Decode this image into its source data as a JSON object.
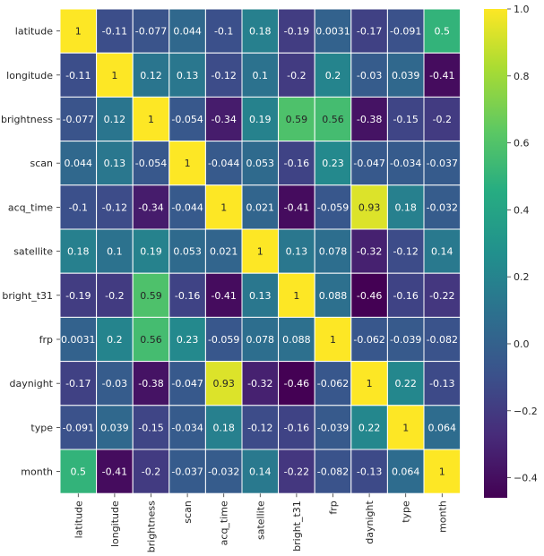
{
  "chart_data": {
    "type": "heatmap",
    "title": "",
    "xlabel": "",
    "ylabel": "",
    "rows": [
      "latitude",
      "longitude",
      "brightness",
      "scan",
      "acq_time",
      "satellite",
      "bright_t31",
      "frp",
      "daynight",
      "type",
      "month"
    ],
    "columns": [
      "latitude",
      "longitude",
      "brightness",
      "scan",
      "acq_time",
      "satellite",
      "bright_t31",
      "frp",
      "daynight",
      "type",
      "month"
    ],
    "values": [
      [
        1,
        -0.11,
        -0.077,
        0.044,
        -0.1,
        0.18,
        -0.19,
        0.0031,
        -0.17,
        -0.091,
        0.5
      ],
      [
        -0.11,
        1,
        0.12,
        0.13,
        -0.12,
        0.1,
        -0.2,
        0.2,
        -0.03,
        0.039,
        -0.41
      ],
      [
        -0.077,
        0.12,
        1,
        -0.054,
        -0.34,
        0.19,
        0.59,
        0.56,
        -0.38,
        -0.15,
        -0.2
      ],
      [
        0.044,
        0.13,
        -0.054,
        1,
        -0.044,
        0.053,
        -0.16,
        0.23,
        -0.047,
        -0.034,
        -0.037
      ],
      [
        -0.1,
        -0.12,
        -0.34,
        -0.044,
        1,
        0.021,
        -0.41,
        -0.059,
        0.93,
        0.18,
        -0.032
      ],
      [
        0.18,
        0.1,
        0.19,
        0.053,
        0.021,
        1,
        0.13,
        0.078,
        -0.32,
        -0.12,
        0.14
      ],
      [
        -0.19,
        -0.2,
        0.59,
        -0.16,
        -0.41,
        0.13,
        1,
        0.088,
        -0.46,
        -0.16,
        -0.22
      ],
      [
        0.0031,
        0.2,
        0.56,
        0.23,
        -0.059,
        0.078,
        0.088,
        1,
        -0.062,
        -0.039,
        -0.082
      ],
      [
        -0.17,
        -0.03,
        -0.38,
        -0.047,
        0.93,
        -0.32,
        -0.46,
        -0.062,
        1,
        0.22,
        -0.13
      ],
      [
        -0.091,
        0.039,
        -0.15,
        -0.034,
        0.18,
        -0.12,
        -0.16,
        -0.039,
        0.22,
        1,
        0.064
      ],
      [
        0.5,
        -0.41,
        -0.2,
        -0.037,
        -0.032,
        0.14,
        -0.22,
        -0.082,
        -0.13,
        0.064,
        1
      ]
    ],
    "colormap": "viridis",
    "vmin": -0.46,
    "vmax": 1.0,
    "colorbar_ticks": [
      "1.0",
      "0.8",
      "0.6",
      "0.4",
      "0.2",
      "0.0",
      "−0.2",
      "−0.4"
    ],
    "grid": true,
    "annotations": true
  }
}
